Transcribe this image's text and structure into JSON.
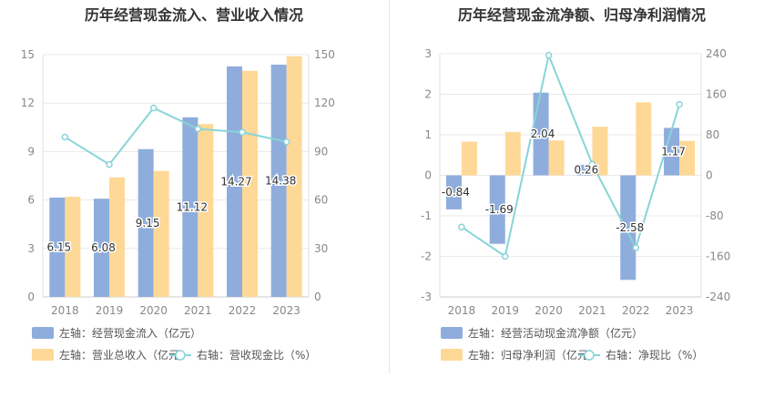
{
  "colors": {
    "bar_left": "#8eaddc",
    "bar_right": "#fed896",
    "line": "#88d4d8",
    "axis_text": "#888888",
    "title": "#333333",
    "grid": "#e9e9e9"
  },
  "chart_data": [
    {
      "type": "bar+line",
      "title": "历年经营现金流入、营业收入情况",
      "categories": [
        "2018",
        "2019",
        "2020",
        "2021",
        "2022",
        "2023"
      ],
      "y_left": {
        "ticks": [
          "0",
          "3",
          "6",
          "9",
          "12",
          "15"
        ],
        "range": [
          0,
          15
        ]
      },
      "y_right": {
        "ticks": [
          "0",
          "30",
          "60",
          "90",
          "120",
          "150"
        ],
        "range": [
          0,
          150
        ]
      },
      "series": [
        {
          "name": "左轴：经营现金流入（亿元）",
          "kind": "bar",
          "axis": "left",
          "color": "#8eaddc",
          "values": [
            6.15,
            6.08,
            9.15,
            11.12,
            14.27,
            14.38
          ],
          "labels": [
            "6.15",
            "6.08",
            "9.15",
            "11.12",
            "14.27",
            "14.38"
          ]
        },
        {
          "name": "左轴：营业总收入（亿元）",
          "kind": "bar",
          "axis": "left",
          "color": "#fed896",
          "values": [
            6.2,
            7.4,
            7.8,
            10.7,
            14.0,
            14.9
          ]
        },
        {
          "name": "右轴：营收现金比（%）",
          "kind": "line",
          "axis": "right",
          "color": "#88d4d8",
          "values": [
            99,
            82,
            117,
            104,
            102,
            96
          ]
        }
      ],
      "legend": [
        "左轴：经营现金流入（亿元）",
        "左轴：营业总收入（亿元）",
        "右轴：营收现金比（%）"
      ]
    },
    {
      "type": "bar+line",
      "title": "历年经营现金流净额、归母净利润情况",
      "categories": [
        "2018",
        "2019",
        "2020",
        "2021",
        "2022",
        "2023"
      ],
      "y_left": {
        "ticks": [
          "-3",
          "-2",
          "-1",
          "0",
          "1",
          "2",
          "3"
        ],
        "range": [
          -3,
          3
        ]
      },
      "y_right": {
        "ticks": [
          "-240",
          "-160",
          "-80",
          "0",
          "80",
          "160",
          "240"
        ],
        "range": [
          -240,
          240
        ]
      },
      "series": [
        {
          "name": "左轴：经营活动现金流净额（亿元）",
          "kind": "bar",
          "axis": "left",
          "color": "#8eaddc",
          "values": [
            -0.84,
            -1.69,
            2.04,
            0.26,
            -2.58,
            1.17
          ],
          "labels": [
            "-0.84",
            "-1.69",
            "2.04",
            "0.26",
            "-2.58",
            "1.17"
          ]
        },
        {
          "name": "左轴：归母净利润（亿元）",
          "kind": "bar",
          "axis": "left",
          "color": "#fed896",
          "values": [
            0.83,
            1.07,
            0.86,
            1.2,
            1.8,
            0.85
          ]
        },
        {
          "name": "右轴：净现比（%）",
          "kind": "line",
          "axis": "right",
          "color": "#88d4d8",
          "values": [
            -102,
            -160,
            237,
            22,
            -143,
            140
          ]
        }
      ],
      "legend": [
        "左轴：经营活动现金流净额（亿元）",
        "左轴：归母净利润（亿元）",
        "右轴：净现比（%）"
      ]
    }
  ]
}
